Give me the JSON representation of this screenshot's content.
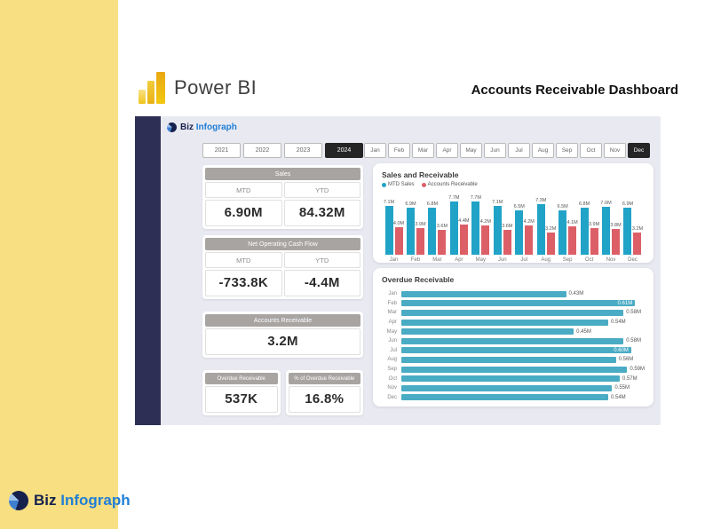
{
  "page": {
    "brand": "Power BI",
    "title": "Accounts Receivable Dashboard"
  },
  "logo": {
    "biz": "Biz",
    "infograph": "Infograph"
  },
  "filters": {
    "years": [
      "2021",
      "2022",
      "2023",
      "2024"
    ],
    "selected_year": "2024",
    "months": [
      "Jan",
      "Feb",
      "Mar",
      "Apr",
      "May",
      "Jun",
      "Jul",
      "Aug",
      "Sep",
      "Oct",
      "Nov",
      "Dec"
    ],
    "selected_month": "Dec"
  },
  "kpis": {
    "sales": {
      "title": "Sales",
      "mtd_label": "MTD",
      "ytd_label": "YTD",
      "mtd": "6.90M",
      "ytd": "84.32M"
    },
    "cash_flow": {
      "title": "Net Operating Cash Flow",
      "mtd_label": "MTD",
      "ytd_label": "YTD",
      "mtd": "-733.8K",
      "ytd": "-4.4M"
    },
    "accounts_receivable": {
      "title": "Accounts Receivable",
      "value": "3.2M"
    },
    "overdue_receivable": {
      "title": "Overdue Receivable",
      "value": "537K"
    },
    "overdue_pct": {
      "title": "% of Overdue Receivable",
      "value": "16.8%"
    }
  },
  "colors": {
    "yellow_band": "#F7DF82",
    "navy": "#2D2F55",
    "dashboard_bg": "#E9EAF1",
    "kpi_header": "#A7A4A2",
    "teal_bar": "#21A3C7",
    "red_bar": "#DC5F68",
    "hbar_teal": "#4AABC4",
    "selected_button": "#252525",
    "biz_navy": "#16214d",
    "biz_blue": "#1f7ed6"
  },
  "chart_data": [
    {
      "type": "bar",
      "title": "Sales and Receivable",
      "categories": [
        "Jan",
        "Feb",
        "Mar",
        "Apr",
        "May",
        "Jun",
        "Jul",
        "Aug",
        "Sep",
        "Oct",
        "Nov",
        "Dec"
      ],
      "series": [
        {
          "name": "MTD Sales",
          "color": "#21A3C7",
          "values": [
            7.1,
            6.9,
            6.8,
            7.7,
            7.7,
            7.1,
            6.5,
            7.3,
            6.5,
            6.8,
            7.0,
            6.9
          ]
        },
        {
          "name": "Accounts Receivable",
          "color": "#DC5F68",
          "values": [
            4.0,
            3.9,
            3.6,
            4.4,
            4.2,
            3.6,
            4.2,
            3.2,
            4.1,
            3.9,
            3.8,
            3.2
          ]
        }
      ],
      "value_suffix": "M",
      "ylim": [
        0,
        8
      ],
      "grid": false,
      "legend_position": "top",
      "data_labels": true
    },
    {
      "type": "bar",
      "orientation": "horizontal",
      "title": "Overdue Receivable",
      "categories": [
        "Jan",
        "Feb",
        "Mar",
        "Apr",
        "May",
        "Jun",
        "Jul",
        "Aug",
        "Sep",
        "Oct",
        "Nov",
        "Dec"
      ],
      "values": [
        0.43,
        0.61,
        0.58,
        0.54,
        0.45,
        0.58,
        0.6,
        0.56,
        0.59,
        0.57,
        0.55,
        0.54
      ],
      "value_suffix": "M",
      "xlim": [
        0,
        0.635
      ],
      "grid": false,
      "data_labels": true
    }
  ]
}
